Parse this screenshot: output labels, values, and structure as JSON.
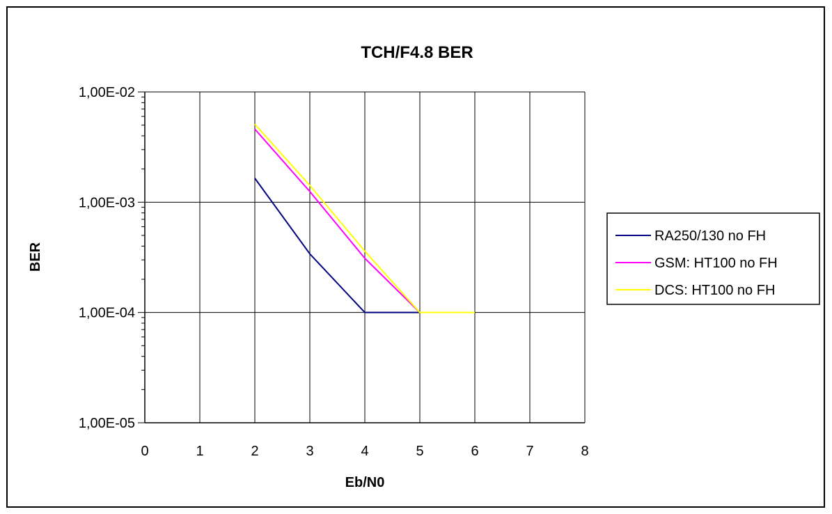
{
  "chart_data": {
    "type": "line",
    "title": "TCH/F4.8  BER",
    "xlabel": "Eb/N0",
    "ylabel": "BER",
    "xlim": [
      0,
      8
    ],
    "ylim": [
      1e-05,
      0.01
    ],
    "y_scale": "log",
    "x_ticks": [
      "0",
      "1",
      "2",
      "3",
      "4",
      "5",
      "6",
      "7",
      "8"
    ],
    "y_ticks": [
      {
        "value": 0.01,
        "label": "1,00E-02"
      },
      {
        "value": 0.001,
        "label": "1,00E-03"
      },
      {
        "value": 0.0001,
        "label": "1,00E-04"
      },
      {
        "value": 1e-05,
        "label": "1,00E-05"
      }
    ],
    "grid": true,
    "legend_position": "right",
    "series": [
      {
        "name": "RA250/130 no FH",
        "color": "#000080",
        "x": [
          2,
          3,
          4,
          5
        ],
        "y": [
          0.00165,
          0.00034,
          0.0001,
          0.0001
        ]
      },
      {
        "name": "GSM: HT100 no FH",
        "color": "#ff00ff",
        "x": [
          2,
          3,
          4,
          5
        ],
        "y": [
          0.0046,
          0.00125,
          0.00031,
          0.0001
        ]
      },
      {
        "name": "DCS: HT100 no FH",
        "color": "#ffff00",
        "x": [
          2,
          3,
          4,
          5,
          6
        ],
        "y": [
          0.0051,
          0.00142,
          0.00036,
          0.0001,
          0.0001
        ]
      }
    ]
  }
}
